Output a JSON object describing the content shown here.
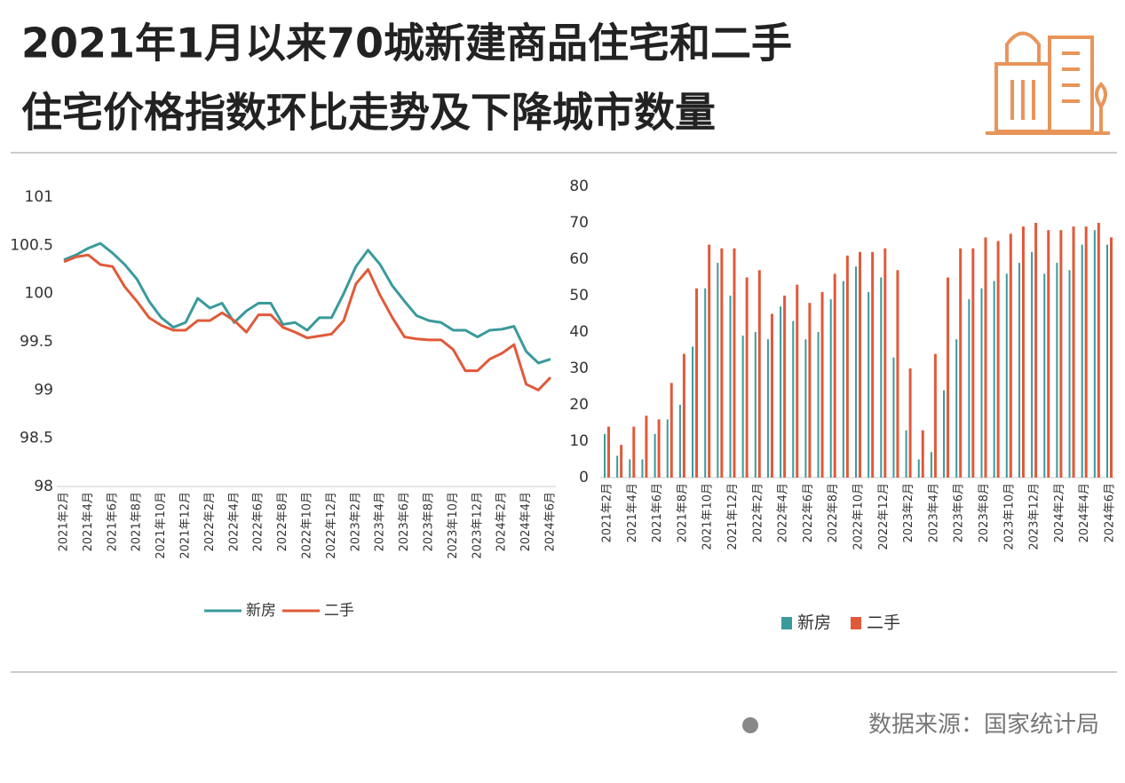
{
  "title_lines": [
    "2021年1月以来70城新建商品住宅和二手",
    "住宅价格指数环比走势及下降城市数量"
  ],
  "source": "数据来源：国家统计局",
  "chart_data": [
    {
      "type": "line",
      "categories": [
        "2021年2月",
        null,
        "2021年4月",
        null,
        "2021年6月",
        null,
        "2021年8月",
        null,
        "2021年10月",
        null,
        "2021年12月",
        null,
        "2022年2月",
        null,
        "2022年4月",
        null,
        "2022年6月",
        null,
        "2022年8月",
        null,
        "2022年10月",
        null,
        "2022年12月",
        null,
        "2023年2月",
        null,
        "2023年4月",
        null,
        "2023年6月",
        null,
        "2023年8月",
        null,
        "2023年10月",
        null,
        "2023年12月",
        null,
        "2024年2月",
        null,
        "2024年4月",
        null,
        "2024年6月"
      ],
      "series": [
        {
          "name": "新房",
          "color": "#3a9a9c",
          "values": [
            100.35,
            100.4,
            100.47,
            100.52,
            100.42,
            100.3,
            100.15,
            99.92,
            99.75,
            99.65,
            99.7,
            99.95,
            99.85,
            99.9,
            99.7,
            99.82,
            99.9,
            99.9,
            99.68,
            99.7,
            99.62,
            99.75,
            99.75,
            100.0,
            100.28,
            100.45,
            100.3,
            100.08,
            99.92,
            99.77,
            99.72,
            99.7,
            99.62,
            99.62,
            99.55,
            99.62,
            99.63,
            99.66,
            99.4,
            99.28,
            99.32
          ]
        },
        {
          "name": "二手",
          "color": "#e05a3a",
          "values": [
            100.33,
            100.38,
            100.4,
            100.3,
            100.28,
            100.07,
            99.92,
            99.75,
            99.67,
            99.62,
            99.62,
            99.72,
            99.72,
            99.8,
            99.72,
            99.6,
            99.78,
            99.78,
            99.65,
            99.6,
            99.54,
            99.56,
            99.58,
            99.72,
            100.1,
            100.25,
            99.98,
            99.75,
            99.55,
            99.53,
            99.52,
            99.52,
            99.42,
            99.2,
            99.2,
            99.32,
            99.38,
            99.47,
            99.06,
            99.0,
            99.13
          ]
        }
      ],
      "ylim": [
        98,
        101
      ],
      "yticks": [
        98,
        98.5,
        99,
        99.5,
        100,
        100.5,
        101
      ],
      "grid": false
    },
    {
      "type": "bar",
      "categories": [
        "2021年2月",
        null,
        "2021年4月",
        null,
        "2021年6月",
        null,
        "2021年8月",
        null,
        "2021年10月",
        null,
        "2021年12月",
        null,
        "2022年2月",
        null,
        "2022年4月",
        null,
        "2022年6月",
        null,
        "2022年8月",
        null,
        "2022年10月",
        null,
        "2022年12月",
        null,
        "2023年2月",
        null,
        "2023年4月",
        null,
        "2023年6月",
        null,
        "2023年8月",
        null,
        "2023年10月",
        null,
        "2023年12月",
        null,
        "2024年2月",
        null,
        "2024年4月",
        null,
        "2024年6月"
      ],
      "series": [
        {
          "name": "新房",
          "color": "#3a9a9c",
          "values": [
            12,
            6,
            5,
            5,
            12,
            16,
            20,
            36,
            52,
            59,
            50,
            39,
            40,
            38,
            47,
            43,
            38,
            40,
            49,
            54,
            58,
            51,
            55,
            33,
            13,
            5,
            7,
            24,
            38,
            49,
            52,
            54,
            56,
            59,
            62,
            56,
            59,
            57,
            64,
            68,
            64
          ]
        },
        {
          "name": "二手",
          "color": "#e05a3a",
          "values": [
            14,
            9,
            14,
            17,
            16,
            26,
            34,
            52,
            64,
            63,
            63,
            55,
            57,
            45,
            50,
            53,
            48,
            51,
            56,
            61,
            62,
            62,
            63,
            57,
            30,
            13,
            34,
            55,
            63,
            63,
            66,
            65,
            67,
            69,
            70,
            68,
            68,
            69,
            69,
            70,
            66
          ]
        }
      ],
      "ylim": [
        0,
        80
      ],
      "yticks": [
        0,
        10,
        20,
        30,
        40,
        50,
        60,
        70,
        80
      ],
      "grid": false
    }
  ]
}
